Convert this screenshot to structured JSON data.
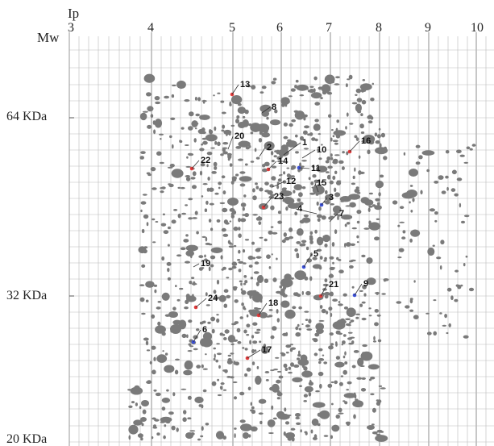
{
  "axes": {
    "x_title": "Ip",
    "y_title": "Mw",
    "x_ticks": [
      "3",
      "4",
      "5",
      "6",
      "7",
      "8",
      "9",
      "10"
    ],
    "y_ticks": [
      "64 KDa",
      "32 KDa",
      "20 KDa"
    ]
  },
  "colors": {
    "spot": "#7a7a7a",
    "grid": "#b9b9b9",
    "marker_red": "#e23a3a",
    "marker_blue": "#3a4fd8"
  },
  "labeled_spots": [
    {
      "label": "13",
      "marker": "red"
    },
    {
      "label": "8",
      "marker": "none"
    },
    {
      "label": "20",
      "marker": "none"
    },
    {
      "label": "2",
      "marker": "none"
    },
    {
      "label": "1",
      "marker": "none"
    },
    {
      "label": "10",
      "marker": "none"
    },
    {
      "label": "16",
      "marker": "red"
    },
    {
      "label": "22",
      "marker": "red"
    },
    {
      "label": "14",
      "marker": "red"
    },
    {
      "label": "11",
      "marker": "blue"
    },
    {
      "label": "12",
      "marker": "none"
    },
    {
      "label": "15",
      "marker": "none"
    },
    {
      "label": "23",
      "marker": "red"
    },
    {
      "label": "3",
      "marker": "blue"
    },
    {
      "label": "4",
      "marker": "none"
    },
    {
      "label": "7",
      "marker": "none"
    },
    {
      "label": "19",
      "marker": "none"
    },
    {
      "label": "5",
      "marker": "blue"
    },
    {
      "label": "21",
      "marker": "red"
    },
    {
      "label": "9",
      "marker": "blue"
    },
    {
      "label": "24",
      "marker": "red"
    },
    {
      "label": "18",
      "marker": "red"
    },
    {
      "label": "6",
      "marker": "blue"
    },
    {
      "label": "17",
      "marker": "red"
    }
  ]
}
